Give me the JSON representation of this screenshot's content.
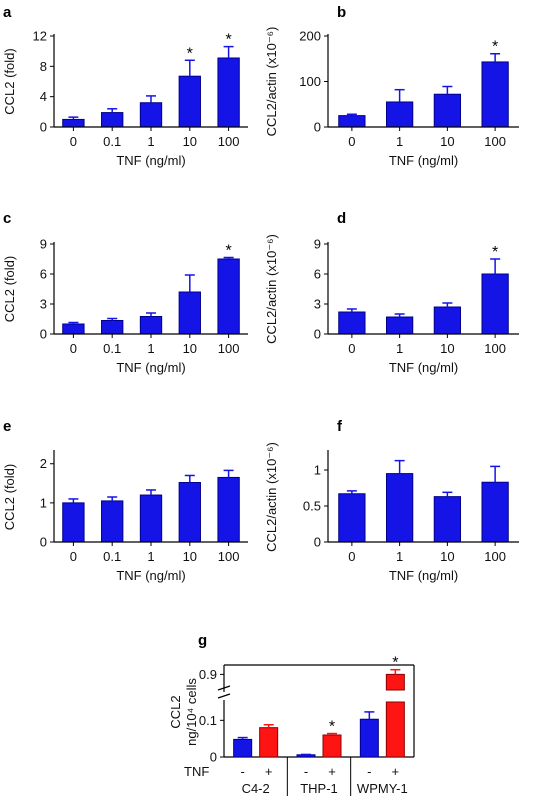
{
  "chart_data": [
    {
      "id": "a",
      "type": "bar",
      "panel_label": "a",
      "categories": [
        "0",
        "0.1",
        "1",
        "10",
        "100"
      ],
      "values": [
        1.0,
        1.9,
        3.2,
        6.7,
        9.1
      ],
      "errors": [
        0.3,
        0.5,
        0.9,
        2.1,
        1.5
      ],
      "significant": [
        false,
        false,
        false,
        true,
        true
      ],
      "xlabel": "TNF (ng/ml)",
      "ylabel": "CCL2 (fold)",
      "ylim": [
        0,
        12
      ],
      "yticks": [
        "0",
        "4",
        "8",
        "12"
      ],
      "ytick_values": [
        0,
        4,
        8,
        12
      ],
      "star": "*"
    },
    {
      "id": "b",
      "type": "bar",
      "panel_label": "b",
      "categories": [
        "0",
        "1",
        "10",
        "100"
      ],
      "values": [
        25,
        55,
        72,
        143
      ],
      "errors": [
        3,
        27,
        17,
        18
      ],
      "significant": [
        false,
        false,
        false,
        true
      ],
      "xlabel": "TNF (ng/ml)",
      "ylabel": "CCL2/actin (x10⁻⁶)",
      "ylim": [
        0,
        200
      ],
      "yticks": [
        "0",
        "100",
        "200"
      ],
      "ytick_values": [
        0,
        100,
        200
      ],
      "star": "*"
    },
    {
      "id": "c",
      "type": "bar",
      "panel_label": "c",
      "categories": [
        "0",
        "0.1",
        "1",
        "10",
        "100"
      ],
      "values": [
        1.0,
        1.35,
        1.75,
        4.2,
        7.5
      ],
      "errors": [
        0.15,
        0.2,
        0.35,
        1.7,
        0.15
      ],
      "significant": [
        false,
        false,
        false,
        false,
        true
      ],
      "xlabel": "TNF (ng/ml)",
      "ylabel": "CCL2 (fold)",
      "ylim": [
        0,
        9
      ],
      "yticks": [
        "0",
        "3",
        "6",
        "9"
      ],
      "ytick_values": [
        0,
        3,
        6,
        9
      ],
      "star": "*"
    },
    {
      "id": "d",
      "type": "bar",
      "panel_label": "d",
      "categories": [
        "0",
        "1",
        "10",
        "100"
      ],
      "values": [
        2.2,
        1.7,
        2.7,
        6.0
      ],
      "errors": [
        0.3,
        0.3,
        0.4,
        1.5
      ],
      "significant": [
        false,
        false,
        false,
        true
      ],
      "xlabel": "TNF (ng/ml)",
      "ylabel": "CCL2/actin (x10⁻⁶)",
      "ylim": [
        0,
        9
      ],
      "yticks": [
        "0",
        "3",
        "6",
        "9"
      ],
      "ytick_values": [
        0,
        3,
        6,
        9
      ],
      "star": "*"
    },
    {
      "id": "e",
      "type": "bar",
      "panel_label": "e",
      "categories": [
        "0",
        "0.1",
        "1",
        "10",
        "100"
      ],
      "values": [
        1.0,
        1.05,
        1.2,
        1.52,
        1.65
      ],
      "errors": [
        0.1,
        0.1,
        0.13,
        0.18,
        0.18
      ],
      "significant": [
        false,
        false,
        false,
        false,
        false
      ],
      "xlabel": "TNF (ng/ml)",
      "ylabel": "CCL2 (fold)",
      "ylim": [
        0,
        2.3
      ],
      "yticks": [
        "0",
        "1",
        "2"
      ],
      "ytick_values": [
        0,
        1,
        2
      ],
      "star": "*"
    },
    {
      "id": "f",
      "type": "bar",
      "panel_label": "f",
      "categories": [
        "0",
        "1",
        "10",
        "100"
      ],
      "values": [
        0.67,
        0.95,
        0.63,
        0.83
      ],
      "errors": [
        0.04,
        0.18,
        0.06,
        0.22
      ],
      "significant": [
        false,
        false,
        false,
        false
      ],
      "xlabel": "TNF (ng/ml)",
      "ylabel": "CCL2/actin (x10⁻⁶)",
      "ylim": [
        0,
        1.25
      ],
      "yticks": [
        "0",
        "0.5",
        "1"
      ],
      "ytick_values": [
        0,
        0.5,
        1
      ],
      "star": "*"
    },
    {
      "id": "g",
      "type": "bar",
      "panel_label": "g",
      "broken_axis": true,
      "groups": [
        "C4-2",
        "THP-1",
        "WPMY-1"
      ],
      "tnf_row_label": "TNF",
      "tnf_signs": [
        "-",
        "+",
        "-",
        "+",
        "-",
        "+"
      ],
      "ylabel_line1": "CCL2",
      "ylabel_line2": "ng/10⁴ cells",
      "lower_yticks": [
        "0",
        "0.1"
      ],
      "lower_ytick_values": [
        0,
        0.1
      ],
      "lower_ylim": [
        0,
        0.15
      ],
      "upper_yticks": [
        "0.9"
      ],
      "upper_ytick_values": [
        0.9
      ],
      "upper_ylim": [
        0.85,
        0.93
      ],
      "series": [
        {
          "name": "-",
          "color": "#1414e6",
          "values": [
            0.048,
            0.006,
            0.103
          ],
          "errors": [
            0.005,
            0.001,
            0.02
          ]
        },
        {
          "name": "+",
          "color": "#ff1414",
          "values": [
            0.08,
            0.06,
            0.9
          ],
          "errors": [
            0.008,
            0.004,
            0.015
          ]
        }
      ],
      "significant_plus": [
        false,
        true,
        true
      ],
      "star": "*"
    }
  ]
}
